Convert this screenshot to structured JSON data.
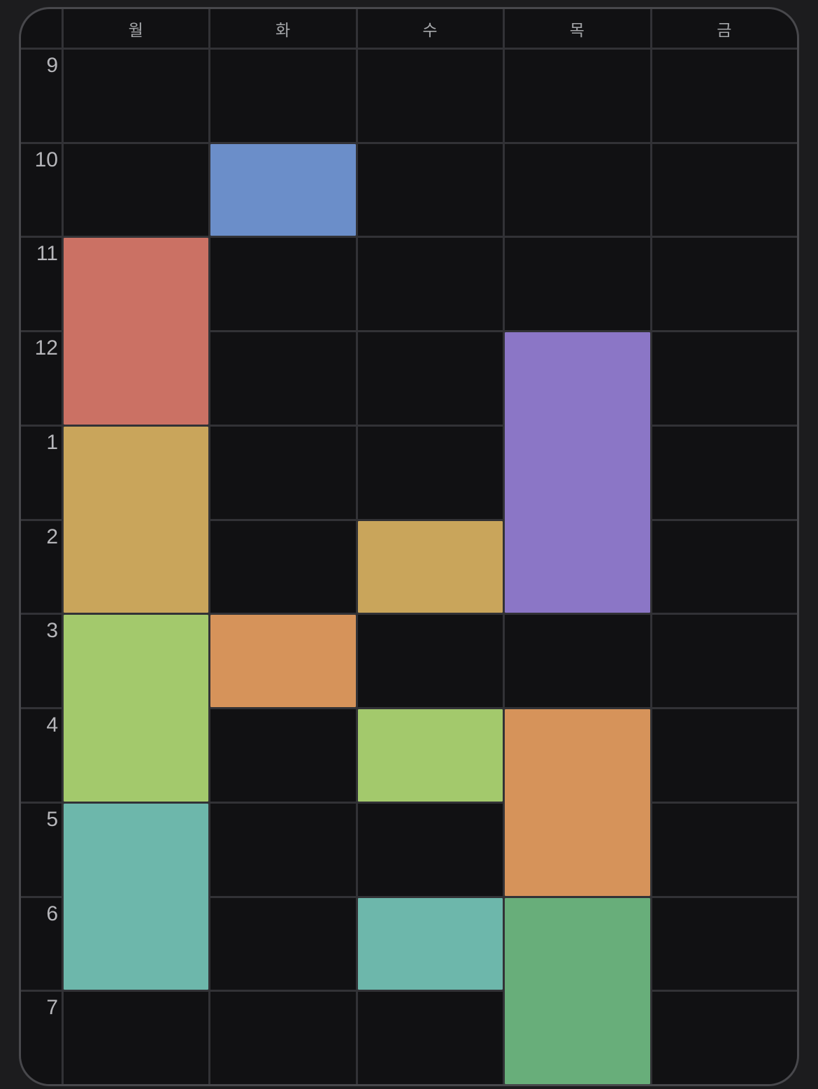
{
  "timetable": {
    "day_headers": [
      "월",
      "화",
      "수",
      "목",
      "금"
    ],
    "time_labels": [
      "9",
      "10",
      "11",
      "12",
      "1",
      "2",
      "3",
      "4",
      "5",
      "6",
      "7"
    ],
    "events": [
      {
        "day": "화",
        "day_index": 1,
        "start_label": "10",
        "row_index": 1,
        "row_span": 1,
        "color": "#6b8ec9",
        "color_name": "blue"
      },
      {
        "day": "월",
        "day_index": 0,
        "start_label": "11",
        "row_index": 2,
        "row_span": 2,
        "color": "#cb7164",
        "color_name": "salmon-red"
      },
      {
        "day": "목",
        "day_index": 3,
        "start_label": "12",
        "row_index": 3,
        "row_span": 3,
        "color": "#8b76c6",
        "color_name": "purple"
      },
      {
        "day": "월",
        "day_index": 0,
        "start_label": "1",
        "row_index": 4,
        "row_span": 2,
        "color": "#c9a55b",
        "color_name": "gold"
      },
      {
        "day": "수",
        "day_index": 2,
        "start_label": "2",
        "row_index": 5,
        "row_span": 1,
        "color": "#c9a55b",
        "color_name": "gold"
      },
      {
        "day": "월",
        "day_index": 0,
        "start_label": "3",
        "row_index": 6,
        "row_span": 2,
        "color": "#a3c96c",
        "color_name": "yellow-green"
      },
      {
        "day": "화",
        "day_index": 1,
        "start_label": "3",
        "row_index": 6,
        "row_span": 1,
        "color": "#d6935a",
        "color_name": "orange"
      },
      {
        "day": "수",
        "day_index": 2,
        "start_label": "4",
        "row_index": 7,
        "row_span": 1,
        "color": "#a3c96c",
        "color_name": "yellow-green"
      },
      {
        "day": "목",
        "day_index": 3,
        "start_label": "4",
        "row_index": 7,
        "row_span": 2,
        "color": "#d6935a",
        "color_name": "orange"
      },
      {
        "day": "월",
        "day_index": 0,
        "start_label": "5",
        "row_index": 8,
        "row_span": 2,
        "color": "#6db7ab",
        "color_name": "teal"
      },
      {
        "day": "수",
        "day_index": 2,
        "start_label": "6",
        "row_index": 9,
        "row_span": 1,
        "color": "#6db7ab",
        "color_name": "teal"
      },
      {
        "day": "목",
        "day_index": 3,
        "start_label": "6",
        "row_index": 9,
        "row_span": 2,
        "color": "#68ae7a",
        "color_name": "green"
      }
    ],
    "colors": {
      "page_bg": "#1c1c1e",
      "cell_bg": "#111113",
      "grid_line": "#323236",
      "outer_border": "#48484c",
      "time_label_text": "#b6b6ba",
      "day_label_text": "#a6a8ab"
    }
  }
}
